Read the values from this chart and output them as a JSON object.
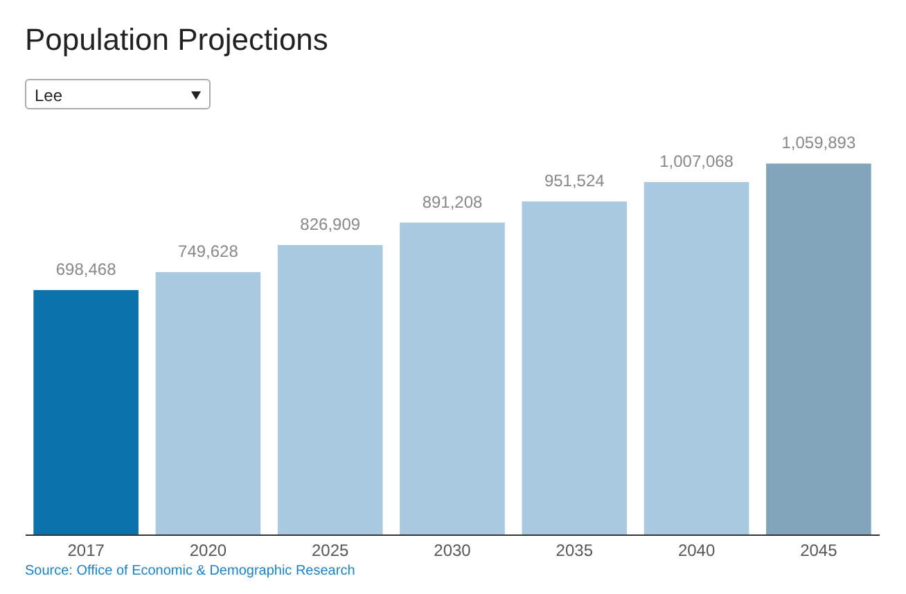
{
  "chart_data": {
    "type": "bar",
    "title": "Population Projections",
    "subtitle": "Lee",
    "categories": [
      "2017",
      "2020",
      "2025",
      "2030",
      "2035",
      "2040",
      "2045"
    ],
    "values": [
      698468,
      749628,
      826909,
      891208,
      951524,
      1007068,
      1059893
    ],
    "colors": [
      "#0b72ab",
      "#a8c9e0",
      "#a8c9e0",
      "#a8c9e0",
      "#a8c9e0",
      "#a8c9e0",
      "#82a5bb"
    ],
    "value_labels": [
      "698,468",
      "749,628",
      "826,909",
      "891,208",
      "951,524",
      "1,007,068",
      "1,059,893"
    ],
    "grid": false,
    "annotations": [
      "Source: Office of Economic & Demographic Research"
    ]
  }
}
